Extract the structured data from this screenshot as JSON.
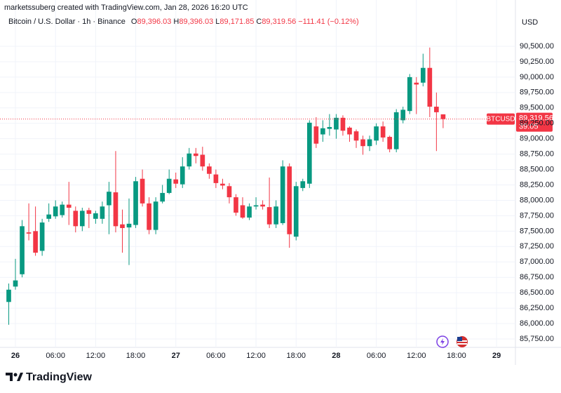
{
  "header": {
    "credit": "marketssuberg created with TradingView.com, Jan 28, 2026 16:20 UTC"
  },
  "footer": {
    "brand": "TradingView"
  },
  "chart_data": {
    "type": "candlestick",
    "symbol_title": "Bitcoin / U.S. Dollar · 1h · Binance",
    "ohlc_legend": {
      "keys": [
        "O",
        "H",
        "L",
        "C"
      ],
      "values": [
        "89,396.03",
        "89,396.03",
        "89,171.85",
        "89,319.56"
      ],
      "change": "−111.41 (−0.12%)"
    },
    "currency": "USD",
    "price_tag": {
      "symbol": "BTCUSD",
      "price": {
        "value": 89319.56,
        "label": "89,319.56"
      },
      "countdown": "39:05"
    },
    "up_color": "#089981",
    "down_color": "#f23645",
    "grid": true,
    "xlim": [
      -2.31,
      74.82
    ],
    "xticks": [
      {
        "value": 0,
        "label": "26"
      },
      {
        "value": 6,
        "label": "06:00"
      },
      {
        "value": 12,
        "label": "12:00"
      },
      {
        "value": 18,
        "label": "18:00"
      },
      {
        "value": 24,
        "label": "27"
      },
      {
        "value": 30,
        "label": "06:00"
      },
      {
        "value": 36,
        "label": "12:00"
      },
      {
        "value": 42,
        "label": "18:00"
      },
      {
        "value": 48,
        "label": "28"
      },
      {
        "value": 54,
        "label": "06:00"
      },
      {
        "value": 60,
        "label": "12:00"
      },
      {
        "value": 66,
        "label": "18:00"
      },
      {
        "value": 72,
        "label": "29"
      }
    ],
    "ylim": [
      85670,
      91024
    ],
    "yticks": [
      {
        "value": 85750,
        "label": "85,750.00"
      },
      {
        "value": 86000,
        "label": "86,000.00"
      },
      {
        "value": 86250,
        "label": "86,250.00"
      },
      {
        "value": 86500,
        "label": "86,500.00"
      },
      {
        "value": 86750,
        "label": "86,750.00"
      },
      {
        "value": 87000,
        "label": "87,000.00"
      },
      {
        "value": 87250,
        "label": "87,250.00"
      },
      {
        "value": 87500,
        "label": "87,500.00"
      },
      {
        "value": 87750,
        "label": "87,750.00"
      },
      {
        "value": 88000,
        "label": "88,000.00"
      },
      {
        "value": 88250,
        "label": "88,250.00"
      },
      {
        "value": 88500,
        "label": "88,500.00"
      },
      {
        "value": 88750,
        "label": "88,750.00"
      },
      {
        "value": 89000,
        "label": "89,000.00"
      },
      {
        "value": 89250,
        "label": "89,250.00"
      },
      {
        "value": 89500,
        "label": "89,500.00"
      },
      {
        "value": 89750,
        "label": "89,750.00"
      },
      {
        "value": 90000,
        "label": "90,000.00"
      },
      {
        "value": 90250,
        "label": "90,250.00"
      },
      {
        "value": 90500,
        "label": "90,500.00"
      }
    ],
    "x": [
      -1,
      0,
      1,
      2,
      3,
      4,
      5,
      6,
      7,
      8,
      9,
      10,
      11,
      12,
      13,
      14,
      15,
      16,
      17,
      18,
      19,
      20,
      21,
      22,
      23,
      24,
      25,
      26,
      27,
      28,
      29,
      30,
      31,
      32,
      33,
      34,
      35,
      36,
      37,
      38,
      39,
      40,
      41,
      42,
      43,
      44,
      45,
      46,
      47,
      48,
      49,
      50,
      51,
      52,
      53,
      54,
      55,
      56,
      57,
      58,
      59,
      60,
      61,
      62,
      63,
      64
    ],
    "open": [
      86350,
      86600,
      86800,
      87480,
      87500,
      87180,
      87700,
      87740,
      87760,
      87930,
      87830,
      87580,
      87840,
      87700,
      87700,
      87920,
      88130,
      87610,
      87560,
      87600,
      88350,
      87950,
      87520,
      87980,
      88120,
      88340,
      88260,
      88550,
      88760,
      88740,
      88550,
      88420,
      88270,
      88230,
      88050,
      87920,
      87720,
      87900,
      87930,
      87890,
      87610,
      87630,
      88550,
      87410,
      88200,
      88270,
      89200,
      89070,
      89160,
      89150,
      89340,
      89180,
      89120,
      88990,
      88880,
      88970,
      89200,
      89030,
      88830,
      89300,
      89450,
      89910,
      89910,
      90150,
      89520,
      89396.03
    ],
    "high": [
      86650,
      87050,
      87680,
      87950,
      87900,
      87700,
      87950,
      88000,
      87980,
      88300,
      87900,
      87880,
      87880,
      87830,
      87980,
      88300,
      88800,
      87850,
      88030,
      88380,
      88500,
      88050,
      88050,
      88250,
      88500,
      88450,
      88700,
      88850,
      88850,
      88870,
      88600,
      88500,
      88350,
      88280,
      88100,
      88050,
      87950,
      88050,
      88000,
      88370,
      88000,
      88650,
      88600,
      88300,
      88350,
      89300,
      89350,
      89300,
      89400,
      89400,
      89380,
      89200,
      89150,
      89050,
      89050,
      89250,
      89280,
      89050,
      89480,
      89520,
      90050,
      90000,
      90380,
      90480,
      89750,
      89396.03
    ],
    "low": [
      85980,
      86550,
      86750,
      87350,
      87100,
      87100,
      87650,
      87700,
      87720,
      87600,
      87480,
      87500,
      87550,
      87620,
      87620,
      87450,
      87480,
      87150,
      86950,
      87550,
      87900,
      87450,
      87450,
      87950,
      88100,
      88200,
      88200,
      88500,
      88600,
      88480,
      88350,
      88200,
      88180,
      87950,
      87750,
      87700,
      87680,
      87850,
      87850,
      87550,
      87550,
      87600,
      87230,
      87350,
      88150,
      88200,
      88850,
      88950,
      89050,
      89000,
      89050,
      88950,
      88850,
      88740,
      88800,
      88900,
      88950,
      88780,
      88780,
      89250,
      89400,
      89400,
      89850,
      89350,
      88800,
      89171.85
    ],
    "close": [
      86550,
      86700,
      87580,
      87460,
      87150,
      87640,
      87770,
      87900,
      87930,
      87880,
      87580,
      87830,
      87780,
      87790,
      87900,
      88140,
      87580,
      87550,
      87620,
      88310,
      87950,
      87520,
      87980,
      88120,
      88350,
      88270,
      88550,
      88760,
      88720,
      88550,
      88430,
      88280,
      88240,
      88050,
      87800,
      87720,
      87900,
      87920,
      87900,
      87610,
      87900,
      88550,
      87450,
      88230,
      88310,
      89260,
      88920,
      89170,
      89190,
      89340,
      89130,
      89070,
      88970,
      88880,
      88990,
      89200,
      89020,
      88830,
      89430,
      89470,
      90000,
      89880,
      90150,
      89520,
      89430,
      89319.56
    ]
  }
}
